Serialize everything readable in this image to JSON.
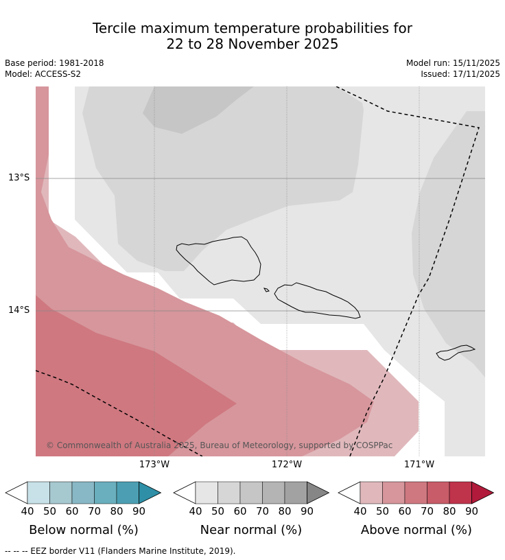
{
  "title": {
    "line1": "Tercile maximum temperature probabilities for",
    "line2": "22 to 28 November 2025"
  },
  "meta": {
    "base_period": "Base period: 1981-2018",
    "model": "Model: ACCESS-S2",
    "model_run": "Model run: 15/11/2025",
    "issued": "Issued: 17/11/2025"
  },
  "map": {
    "lat_labels": [
      "13°S",
      "14°S"
    ],
    "lon_labels": [
      "173°W",
      "172°W",
      "171°W"
    ],
    "copyright": "© Commonwealth of Australia 2025, Bureau of Meteorology, supported by COSPPac"
  },
  "colorbars": [
    {
      "name": "below",
      "title": "Below normal (%)",
      "ticks": [
        "40",
        "50",
        "60",
        "70",
        "80",
        "90"
      ],
      "colors": [
        "#ffffff",
        "#c8e1e8",
        "#a6c8cf",
        "#88b8c5",
        "#6aafbe",
        "#4c9fb2",
        "#2e8fa6"
      ]
    },
    {
      "name": "near",
      "title": "Near normal (%)",
      "ticks": [
        "40",
        "50",
        "60",
        "70",
        "80",
        "90"
      ],
      "colors": [
        "#ffffff",
        "#e6e6e6",
        "#d6d6d6",
        "#c6c6c6",
        "#b4b4b4",
        "#a2a2a2",
        "#868686"
      ]
    },
    {
      "name": "above",
      "title": "Above normal (%)",
      "ticks": [
        "40",
        "50",
        "60",
        "70",
        "80",
        "90"
      ],
      "colors": [
        "#ffffff",
        "#e0b8bc",
        "#d6969c",
        "#cf7880",
        "#c85c68",
        "#bf334b",
        "#b11a3a"
      ]
    }
  ],
  "footer": {
    "eez_note": "--  --  -- EEZ border V11 (Flanders Marine Institute, 2019)."
  }
}
